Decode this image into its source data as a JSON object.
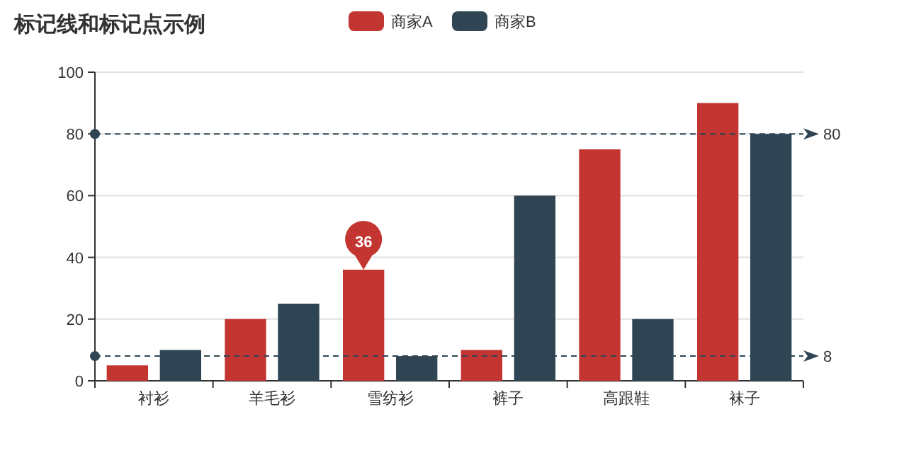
{
  "chart_data": {
    "type": "bar",
    "title": "标记线和标记点示例",
    "categories": [
      "衬衫",
      "羊毛衫",
      "雪纺衫",
      "裤子",
      "高跟鞋",
      "袜子"
    ],
    "series": [
      {
        "name": "商家A",
        "color": "#c23531",
        "values": [
          5,
          20,
          36,
          10,
          75,
          90
        ]
      },
      {
        "name": "商家B",
        "color": "#2f4554",
        "values": [
          10,
          25,
          8,
          60,
          20,
          80
        ]
      }
    ],
    "ylim": [
      0,
      100
    ],
    "yticks": [
      0,
      20,
      40,
      60,
      80,
      100
    ],
    "grid": "y",
    "legend": "top",
    "ref_lines": [
      {
        "axis": "y",
        "value": 80,
        "label": "80",
        "color": "#2f4554",
        "line_style": "dashed"
      },
      {
        "axis": "y",
        "value": 8,
        "label": "8",
        "color": "#2f4554",
        "line_style": "dashed"
      }
    ],
    "annotations": [
      {
        "text": "36",
        "x": "雪纺衫",
        "y": 36
      }
    ]
  }
}
